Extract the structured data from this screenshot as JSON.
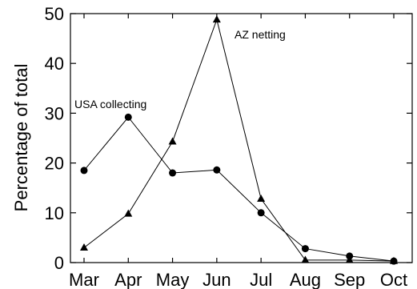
{
  "chart_data": {
    "type": "line",
    "title": "",
    "xlabel": "",
    "ylabel": "Percentage of total",
    "ylim": [
      0,
      50
    ],
    "yticks": [
      0,
      10,
      20,
      30,
      40,
      50
    ],
    "categories": [
      "Mar",
      "Apr",
      "May",
      "Jun",
      "Jul",
      "Aug",
      "Sep",
      "Oct"
    ],
    "grid": false,
    "series": [
      {
        "name": "USA collecting",
        "marker": "circle",
        "values": [
          18.5,
          29.2,
          18.0,
          18.6,
          10.0,
          2.8,
          1.3,
          0.3
        ]
      },
      {
        "name": "AZ netting",
        "marker": "triangle",
        "values": [
          3.0,
          9.8,
          24.3,
          48.8,
          12.8,
          0.5,
          0.5,
          0.3
        ]
      }
    ],
    "color": "#000000"
  }
}
